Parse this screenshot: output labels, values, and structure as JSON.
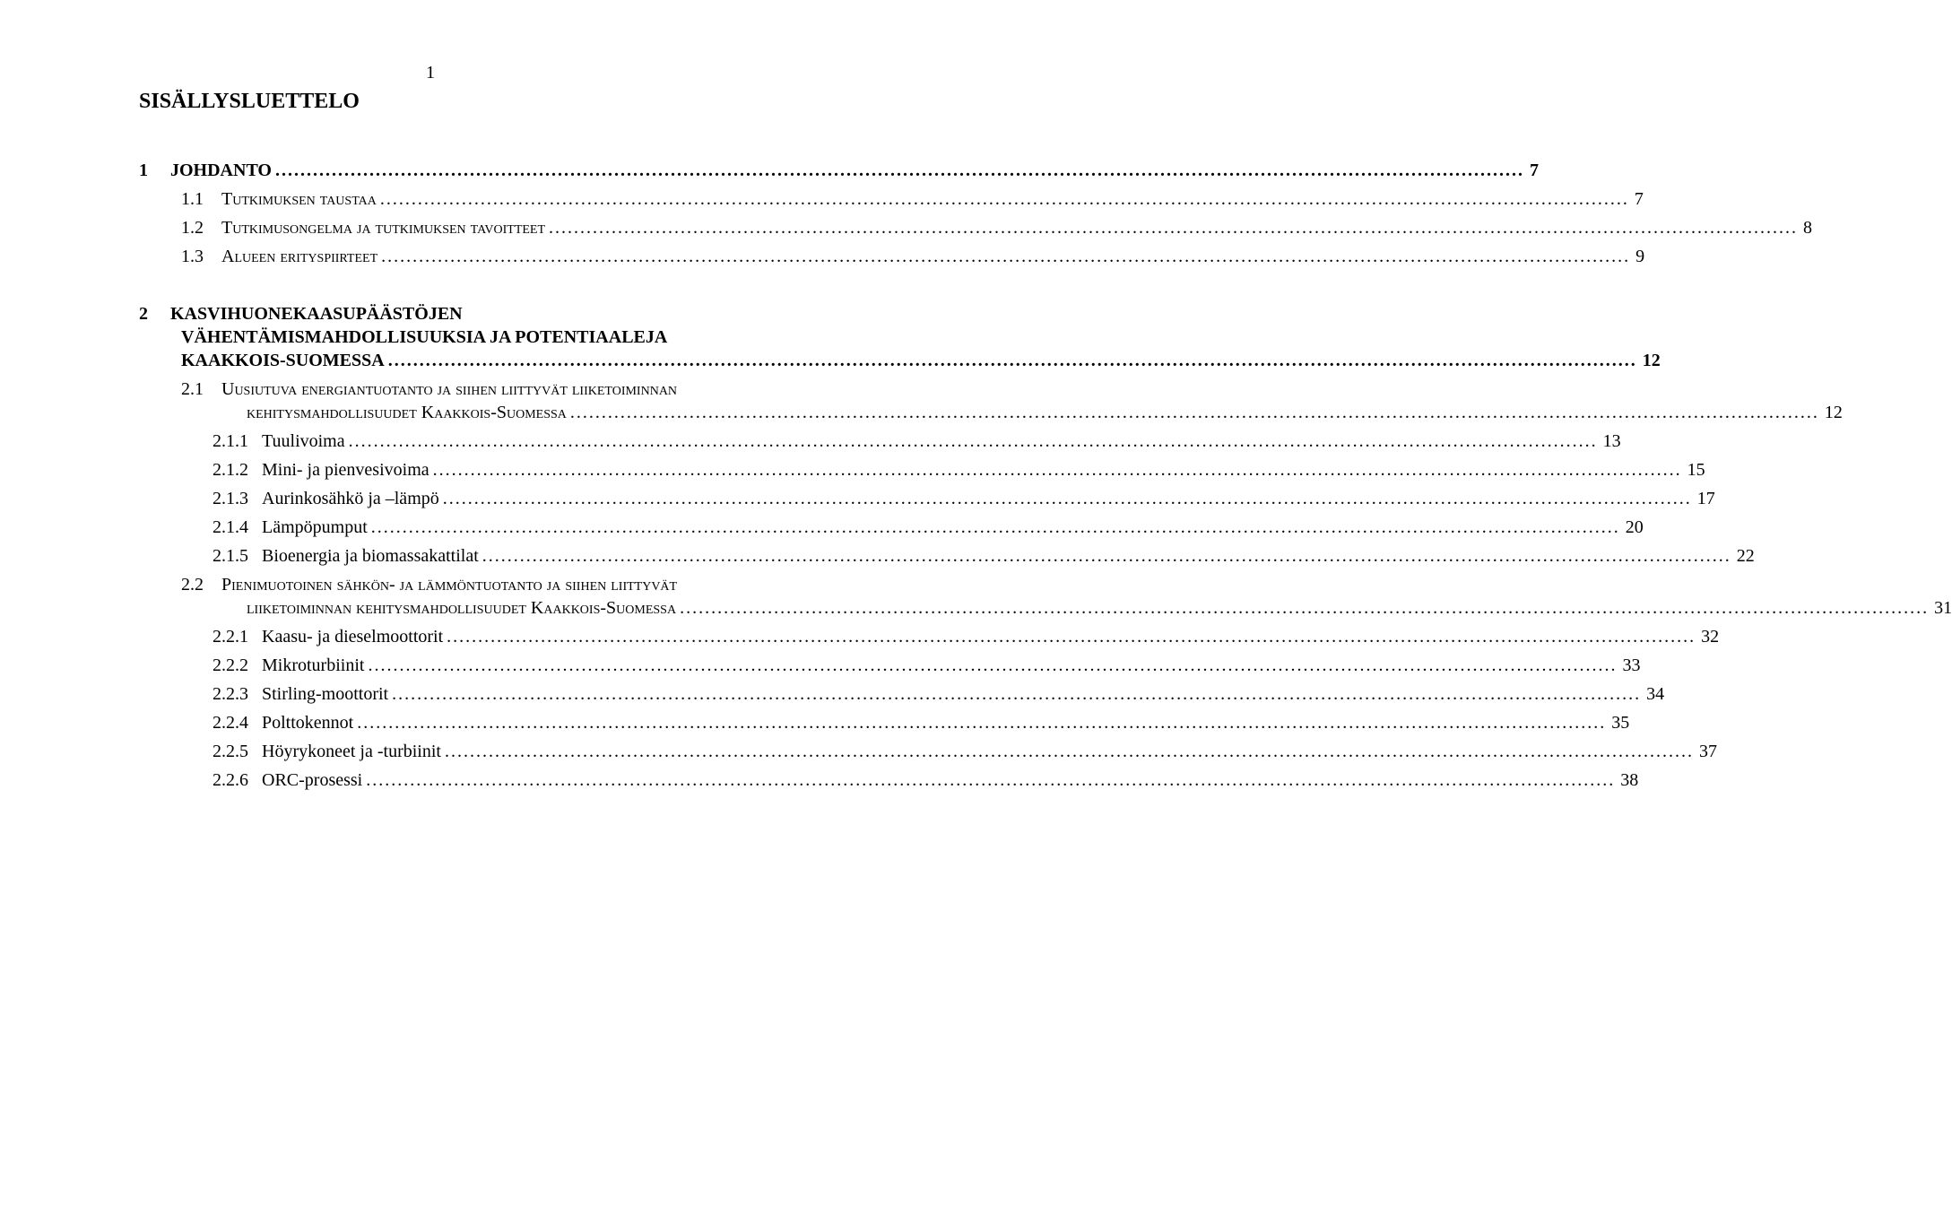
{
  "pageNumber": "1",
  "tocTitle": "SISÄLLYSLUETTELO",
  "entries": [
    {
      "indent": 0,
      "bold": true,
      "sc": false,
      "num": "1",
      "numPad": "1     ",
      "label": "JOHDANTO",
      "page": "7",
      "gap": "lg"
    },
    {
      "indent": 1,
      "bold": false,
      "sc": true,
      "num": "1.1",
      "numPad": "1.1    ",
      "label": "Tutkimuksen taustaa",
      "page": "7",
      "gap": "sm"
    },
    {
      "indent": 1,
      "bold": false,
      "sc": true,
      "num": "1.2",
      "numPad": "1.2    ",
      "label": "Tutkimusongelma ja tutkimuksen tavoitteet",
      "page": "8",
      "gap": "sm"
    },
    {
      "indent": 1,
      "bold": false,
      "sc": true,
      "num": "1.3",
      "numPad": "1.3    ",
      "label": "Alueen erityspiirteet",
      "page": "9",
      "gap": "sm"
    },
    {
      "indent": 0,
      "bold": true,
      "sc": false,
      "num": "2",
      "numPad": "2     ",
      "label": "KASVIHUONEKAASUPÄÄSTÖJEN",
      "label2": "VÄHENTÄMISMAHDOLLISUUKSIA JA POTENTIAALEJA",
      "label3": "KAAKKOIS-SUOMESSA",
      "page": "12",
      "gap": "lg",
      "multiline": true
    },
    {
      "indent": 1,
      "bold": false,
      "sc": true,
      "num": "2.1",
      "numPad": "2.1    ",
      "label": "Uusiutuva energiantuotanto ja siihen liittyvät liiketoiminnan",
      "label2sc": "kehitysmahdollisuudet Kaakkois-Suomessa",
      "page": "12",
      "gap": "sm",
      "multilineSub": true
    },
    {
      "indent": 2,
      "bold": false,
      "sc": false,
      "num": "2.1.1",
      "numPad": "2.1.1   ",
      "label": "Tuulivoima",
      "page": "13",
      "gap": "sm"
    },
    {
      "indent": 2,
      "bold": false,
      "sc": false,
      "num": "2.1.2",
      "numPad": "2.1.2   ",
      "label": "Mini- ja pienvesivoima",
      "page": "15",
      "gap": "sm"
    },
    {
      "indent": 2,
      "bold": false,
      "sc": false,
      "num": "2.1.3",
      "numPad": "2.1.3   ",
      "label": "Aurinkosähkö ja –lämpö",
      "page": "17",
      "gap": "sm"
    },
    {
      "indent": 2,
      "bold": false,
      "sc": false,
      "num": "2.1.4",
      "numPad": "2.1.4   ",
      "label": "Lämpöpumput",
      "page": "20",
      "gap": "sm"
    },
    {
      "indent": 2,
      "bold": false,
      "sc": false,
      "num": "2.1.5",
      "numPad": "2.1.5   ",
      "label": "Bioenergia ja biomassakattilat",
      "page": "22",
      "gap": "sm"
    },
    {
      "indent": 1,
      "bold": false,
      "sc": true,
      "num": "2.2",
      "numPad": "2.2    ",
      "label": "Pienimuotoinen sähkön- ja lämmöntuotanto ja siihen liittyvät",
      "label2sc": "liiketoiminnan kehitysmahdollisuudet Kaakkois-Suomessa",
      "page": "31",
      "gap": "sm",
      "multilineSub": true
    },
    {
      "indent": 2,
      "bold": false,
      "sc": false,
      "num": "2.2.1",
      "numPad": "2.2.1   ",
      "label": "Kaasu- ja dieselmoottorit",
      "page": "32",
      "gap": "sm"
    },
    {
      "indent": 2,
      "bold": false,
      "sc": false,
      "num": "2.2.2",
      "numPad": "2.2.2   ",
      "label": "Mikroturbiinit",
      "page": "33",
      "gap": "sm"
    },
    {
      "indent": 2,
      "bold": false,
      "sc": false,
      "num": "2.2.3",
      "numPad": "2.2.3   ",
      "label": "Stirling-moottorit",
      "page": "34",
      "gap": "sm"
    },
    {
      "indent": 2,
      "bold": false,
      "sc": false,
      "num": "2.2.4",
      "numPad": "2.2.4   ",
      "label": "Polttokennot",
      "page": "35",
      "gap": "sm"
    },
    {
      "indent": 2,
      "bold": false,
      "sc": false,
      "num": "2.2.5",
      "numPad": "2.2.5   ",
      "label": "Höyrykoneet ja -turbiinit",
      "page": "37",
      "gap": "sm"
    },
    {
      "indent": 2,
      "bold": false,
      "sc": false,
      "num": "2.2.6",
      "numPad": "2.2.6   ",
      "label": "ORC-prosessi",
      "page": "38",
      "gap": "sm"
    }
  ]
}
